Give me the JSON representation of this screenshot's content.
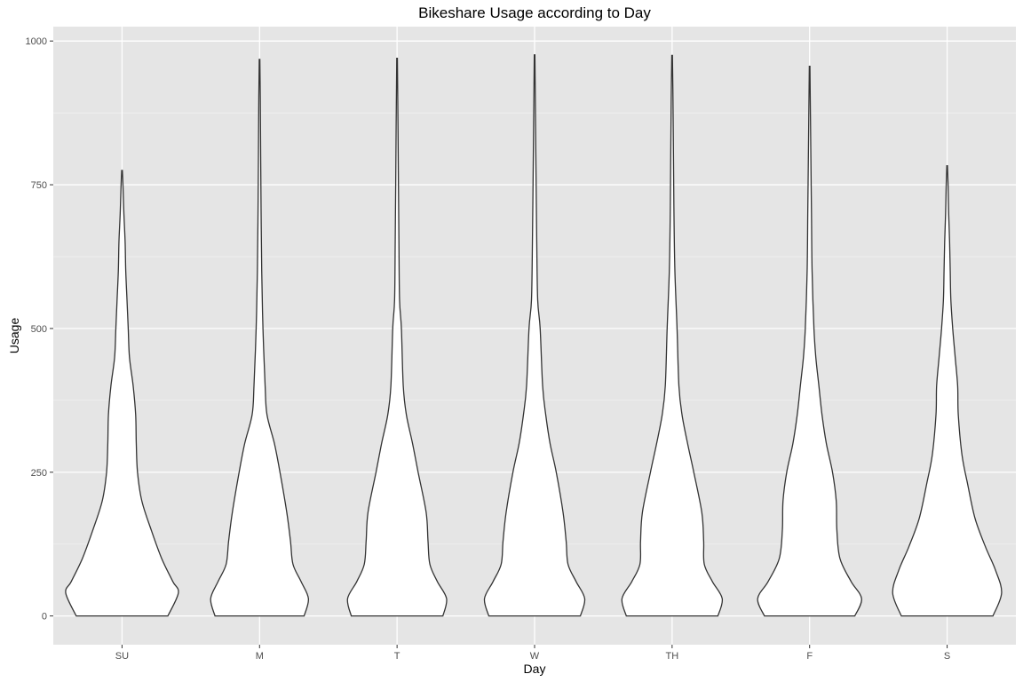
{
  "chart_data": {
    "type": "violin",
    "title": "Bikeshare Usage according to Day",
    "xlabel": "Day",
    "ylabel": "Usage",
    "categories": [
      "SU",
      "M",
      "T",
      "W",
      "TH",
      "F",
      "S"
    ],
    "yticks": [
      0,
      250,
      500,
      750,
      1000
    ],
    "ylim": [
      -50,
      1025
    ],
    "grid": true,
    "colors": {
      "panel": "#e5e5e5",
      "grid": "#ffffff",
      "violin_fill": "#ffffff",
      "violin_outline": "#333333"
    },
    "series": [
      {
        "category": "SU",
        "max": 775,
        "profile": [
          [
            0,
            0.74
          ],
          [
            40,
            0.91
          ],
          [
            60,
            0.82
          ],
          [
            100,
            0.64
          ],
          [
            150,
            0.47
          ],
          [
            200,
            0.32
          ],
          [
            250,
            0.25
          ],
          [
            300,
            0.23
          ],
          [
            350,
            0.22
          ],
          [
            400,
            0.18
          ],
          [
            450,
            0.12
          ],
          [
            500,
            0.1
          ],
          [
            550,
            0.08
          ],
          [
            600,
            0.06
          ],
          [
            650,
            0.05
          ],
          [
            700,
            0.03
          ],
          [
            750,
            0.015
          ],
          [
            775,
            0.005
          ]
        ]
      },
      {
        "category": "M",
        "max": 968,
        "profile": [
          [
            0,
            0.72
          ],
          [
            30,
            0.79
          ],
          [
            60,
            0.67
          ],
          [
            90,
            0.54
          ],
          [
            130,
            0.5
          ],
          [
            180,
            0.44
          ],
          [
            250,
            0.33
          ],
          [
            300,
            0.24
          ],
          [
            350,
            0.12
          ],
          [
            400,
            0.09
          ],
          [
            500,
            0.055
          ],
          [
            600,
            0.035
          ],
          [
            700,
            0.025
          ],
          [
            800,
            0.018
          ],
          [
            900,
            0.012
          ],
          [
            968,
            0.005
          ]
        ]
      },
      {
        "category": "T",
        "max": 970,
        "profile": [
          [
            0,
            0.74
          ],
          [
            30,
            0.8
          ],
          [
            60,
            0.65
          ],
          [
            90,
            0.53
          ],
          [
            130,
            0.5
          ],
          [
            180,
            0.47
          ],
          [
            250,
            0.34
          ],
          [
            300,
            0.25
          ],
          [
            350,
            0.15
          ],
          [
            400,
            0.1
          ],
          [
            500,
            0.07
          ],
          [
            550,
            0.04
          ],
          [
            650,
            0.03
          ],
          [
            750,
            0.022
          ],
          [
            850,
            0.015
          ],
          [
            970,
            0.005
          ]
        ]
      },
      {
        "category": "W",
        "max": 976,
        "profile": [
          [
            0,
            0.74
          ],
          [
            30,
            0.81
          ],
          [
            60,
            0.67
          ],
          [
            90,
            0.54
          ],
          [
            130,
            0.51
          ],
          [
            180,
            0.46
          ],
          [
            250,
            0.35
          ],
          [
            300,
            0.25
          ],
          [
            350,
            0.18
          ],
          [
            400,
            0.13
          ],
          [
            500,
            0.09
          ],
          [
            550,
            0.05
          ],
          [
            650,
            0.035
          ],
          [
            750,
            0.025
          ],
          [
            850,
            0.016
          ],
          [
            976,
            0.005
          ]
        ]
      },
      {
        "category": "TH",
        "max": 975,
        "profile": [
          [
            0,
            0.74
          ],
          [
            30,
            0.81
          ],
          [
            60,
            0.65
          ],
          [
            90,
            0.52
          ],
          [
            130,
            0.51
          ],
          [
            180,
            0.48
          ],
          [
            250,
            0.35
          ],
          [
            300,
            0.25
          ],
          [
            350,
            0.16
          ],
          [
            400,
            0.11
          ],
          [
            500,
            0.08
          ],
          [
            600,
            0.045
          ],
          [
            700,
            0.03
          ],
          [
            800,
            0.022
          ],
          [
            900,
            0.014
          ],
          [
            975,
            0.005
          ]
        ]
      },
      {
        "category": "F",
        "max": 956,
        "profile": [
          [
            0,
            0.73
          ],
          [
            30,
            0.84
          ],
          [
            60,
            0.67
          ],
          [
            100,
            0.49
          ],
          [
            150,
            0.44
          ],
          [
            200,
            0.43
          ],
          [
            250,
            0.37
          ],
          [
            300,
            0.27
          ],
          [
            350,
            0.2
          ],
          [
            400,
            0.15
          ],
          [
            450,
            0.1
          ],
          [
            500,
            0.07
          ],
          [
            600,
            0.04
          ],
          [
            700,
            0.03
          ],
          [
            800,
            0.02
          ],
          [
            956,
            0.005
          ]
        ]
      },
      {
        "category": "S",
        "max": 783,
        "profile": [
          [
            0,
            0.74
          ],
          [
            40,
            0.88
          ],
          [
            80,
            0.78
          ],
          [
            120,
            0.62
          ],
          [
            170,
            0.45
          ],
          [
            230,
            0.33
          ],
          [
            280,
            0.24
          ],
          [
            350,
            0.18
          ],
          [
            400,
            0.17
          ],
          [
            450,
            0.13
          ],
          [
            500,
            0.09
          ],
          [
            550,
            0.06
          ],
          [
            600,
            0.05
          ],
          [
            650,
            0.04
          ],
          [
            700,
            0.025
          ],
          [
            750,
            0.015
          ],
          [
            783,
            0.005
          ]
        ]
      }
    ]
  }
}
